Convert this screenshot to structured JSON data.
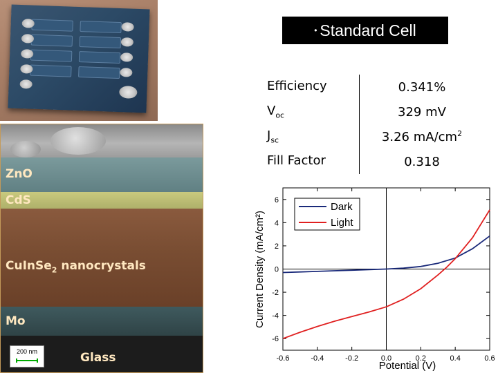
{
  "title": {
    "bullet": "•",
    "text": "Standard Cell"
  },
  "parameters": [
    {
      "label": "Efficiency",
      "sub": "",
      "value": "0.341%",
      "unit_sup": ""
    },
    {
      "label": "V",
      "sub": "oc",
      "value": "329 mV",
      "unit_sup": ""
    },
    {
      "label": "J",
      "sub": "sc",
      "value": "3.26 mA/cm",
      "unit_sup": "2"
    },
    {
      "label": "Fill Factor",
      "sub": "",
      "value": "0.318",
      "unit_sup": ""
    }
  ],
  "sem": {
    "layers": [
      {
        "name": "ZnO",
        "color": "#6a8a8c"
      },
      {
        "name": "CdS",
        "color": "#c8c87a"
      },
      {
        "name": "CuInSe",
        "sub": "2",
        "suffix": " nanocrystals",
        "color": "#7a5238"
      },
      {
        "name": "Mo",
        "color": "#3e5356"
      },
      {
        "name": "Glass",
        "color": "#1e1e1e"
      }
    ],
    "scale_bar": "200 nm"
  },
  "chart_data": {
    "type": "line",
    "xlabel": "Potential (V)",
    "ylabel": "Current Density (mA/cm²)",
    "xlim": [
      -0.6,
      0.6
    ],
    "ylim": [
      -7,
      7
    ],
    "xticks": [
      -0.6,
      -0.4,
      -0.2,
      0.0,
      0.2,
      0.4,
      0.6
    ],
    "xtick_labels": [
      "-0.6",
      "-0.4",
      "-0.2",
      "0.0",
      "0.2",
      "0.4",
      "0.6"
    ],
    "yticks": [
      -6,
      -4,
      -2,
      0,
      2,
      4,
      6
    ],
    "ytick_labels": [
      "-6",
      "-4",
      "-2",
      "0",
      "2",
      "4",
      "6"
    ],
    "legend_position": "top-left",
    "series": [
      {
        "name": "Dark",
        "color": "#1a2a7a",
        "x": [
          -0.6,
          -0.5,
          -0.4,
          -0.3,
          -0.2,
          -0.1,
          0.0,
          0.1,
          0.2,
          0.3,
          0.4,
          0.5,
          0.6
        ],
        "y": [
          -0.3,
          -0.25,
          -0.2,
          -0.15,
          -0.1,
          -0.05,
          0.0,
          0.08,
          0.22,
          0.5,
          0.95,
          1.75,
          2.85
        ]
      },
      {
        "name": "Light",
        "color": "#e02020",
        "x": [
          -0.6,
          -0.5,
          -0.4,
          -0.3,
          -0.2,
          -0.1,
          0.0,
          0.1,
          0.2,
          0.3,
          0.35,
          0.4,
          0.5,
          0.6
        ],
        "y": [
          -6.0,
          -5.45,
          -4.95,
          -4.5,
          -4.1,
          -3.7,
          -3.26,
          -2.6,
          -1.7,
          -0.5,
          0.15,
          0.9,
          2.7,
          5.1
        ]
      }
    ]
  }
}
